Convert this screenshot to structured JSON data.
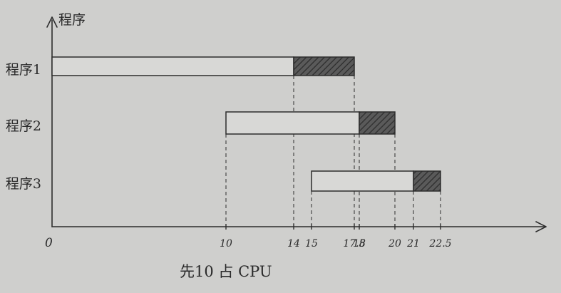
{
  "chart_data": {
    "type": "bar",
    "subtype": "gantt",
    "title": "",
    "xlabel": "",
    "ylabel": "程序",
    "caption": "先10 占 CPU",
    "x_origin_label": "0",
    "xlim": [
      0,
      30
    ],
    "categories": [
      "程序1",
      "程序2",
      "程序3"
    ],
    "x_ticks": [
      "10",
      "14",
      "15",
      "17.5",
      "18",
      "20",
      "21",
      "22.5"
    ],
    "x_tick_values": [
      10,
      14,
      15,
      17.5,
      18,
      20,
      21,
      22.5
    ],
    "series": [
      {
        "category": "程序1",
        "wait": [
          0,
          14
        ],
        "run": [
          14,
          17.5
        ]
      },
      {
        "category": "程序2",
        "wait": [
          10,
          18
        ],
        "run": [
          18,
          20
        ]
      },
      {
        "category": "程序3",
        "wait": [
          15,
          21
        ],
        "run": [
          21,
          22.5
        ]
      }
    ],
    "grid": false,
    "colors": {
      "paper": "#cfcfcd",
      "wait": "#d8d8d6",
      "run": "#4e4e4e",
      "ink": "#2d2d2d"
    }
  }
}
